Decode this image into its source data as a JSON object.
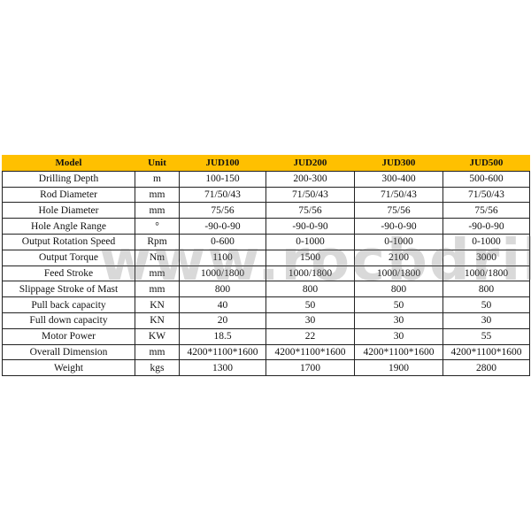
{
  "header": {
    "model": "Model",
    "unit": "Unit",
    "models": [
      "JUD100",
      "JUD200",
      "JUD300",
      "JUD500"
    ]
  },
  "rows": [
    {
      "param": "Drilling Depth",
      "unit": "m",
      "values": [
        "100-150",
        "200-300",
        "300-400",
        "500-600"
      ]
    },
    {
      "param": "Rod Diameter",
      "unit": "mm",
      "values": [
        "71/50/43",
        "71/50/43",
        "71/50/43",
        "71/50/43"
      ]
    },
    {
      "param": "Hole Diameter",
      "unit": "mm",
      "values": [
        "75/56",
        "75/56",
        "75/56",
        "75/56"
      ]
    },
    {
      "param": "Hole Angle Range",
      "unit": "°",
      "values": [
        "-90-0-90",
        "-90-0-90",
        "-90-0-90",
        "-90-0-90"
      ]
    },
    {
      "param": "Output Rotation Speed",
      "unit": "Rpm",
      "values": [
        "0-600",
        "0-1000",
        "0-1000",
        "0-1000"
      ]
    },
    {
      "param": "Output Torque",
      "unit": "Nm",
      "values": [
        "1100",
        "1500",
        "2100",
        "3000"
      ]
    },
    {
      "param": "Feed Stroke",
      "unit": "mm",
      "values": [
        "1000/1800",
        "1000/1800",
        "1000/1800",
        "1000/1800"
      ]
    },
    {
      "param": "Slippage Stroke of Mast",
      "unit": "mm",
      "values": [
        "800",
        "800",
        "800",
        "800"
      ]
    },
    {
      "param": "Pull back capacity",
      "unit": "KN",
      "values": [
        "40",
        "50",
        "50",
        "50"
      ]
    },
    {
      "param": "Full down capacity",
      "unit": "KN",
      "values": [
        "20",
        "30",
        "30",
        "30"
      ]
    },
    {
      "param": "Motor Power",
      "unit": "KW",
      "values": [
        "18.5",
        "22",
        "30",
        "55"
      ]
    },
    {
      "param": "Overall Dimension",
      "unit": "mm",
      "values": [
        "4200*1100*1600",
        "4200*1100*1600",
        "4200*1100*1600",
        "4200*1100*1600"
      ]
    },
    {
      "param": "Weight",
      "unit": "kgs",
      "values": [
        "1300",
        "1700",
        "1900",
        "2800"
      ]
    }
  ],
  "watermark": "www.rocbdrillingrig.com",
  "colors": {
    "header_bg": "#FFC000"
  }
}
